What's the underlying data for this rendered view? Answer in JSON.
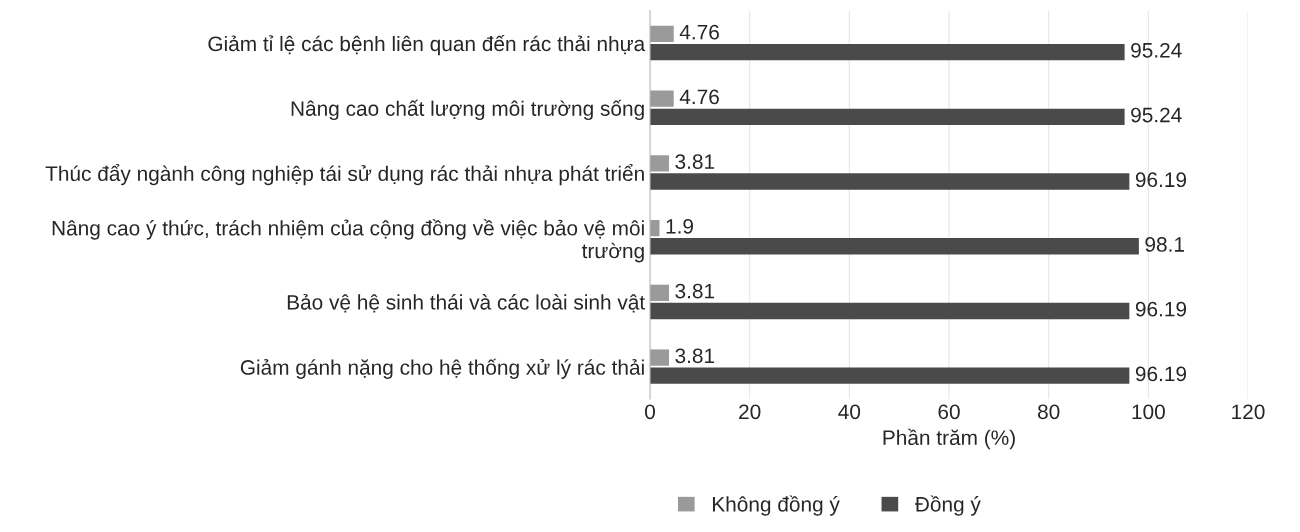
{
  "chart_data": {
    "type": "bar",
    "orientation": "horizontal",
    "xlabel": "Phần trăm (%)",
    "categories": [
      "Giảm tỉ lệ các bệnh liên quan đến rác thải nhựa",
      "Nâng cao chất lượng môi trường sống",
      "Thúc đẩy ngành công nghiệp tái sử dụng rác thải nhựa phát triển",
      "Nâng cao ý thức, trách nhiệm của cộng đồng về việc bảo vệ môi trường",
      "Bảo vệ hệ sinh thái và các loài sinh vật",
      "Giảm gánh nặng cho hệ thống xử lý rác thải"
    ],
    "series": [
      {
        "name": "Không đồng ý",
        "color": "#9a9a9a",
        "values": [
          4.76,
          4.76,
          3.81,
          1.9,
          3.81,
          3.81
        ]
      },
      {
        "name": "Đồng ý",
        "color": "#4a4a4a",
        "values": [
          95.24,
          95.24,
          96.19,
          98.1,
          96.19,
          96.19
        ]
      }
    ],
    "xlim": [
      0,
      120
    ],
    "xticks": [
      0,
      20,
      40,
      60,
      80,
      100,
      120
    ],
    "grid": "x",
    "legend": "bottom",
    "data_labels": true
  }
}
